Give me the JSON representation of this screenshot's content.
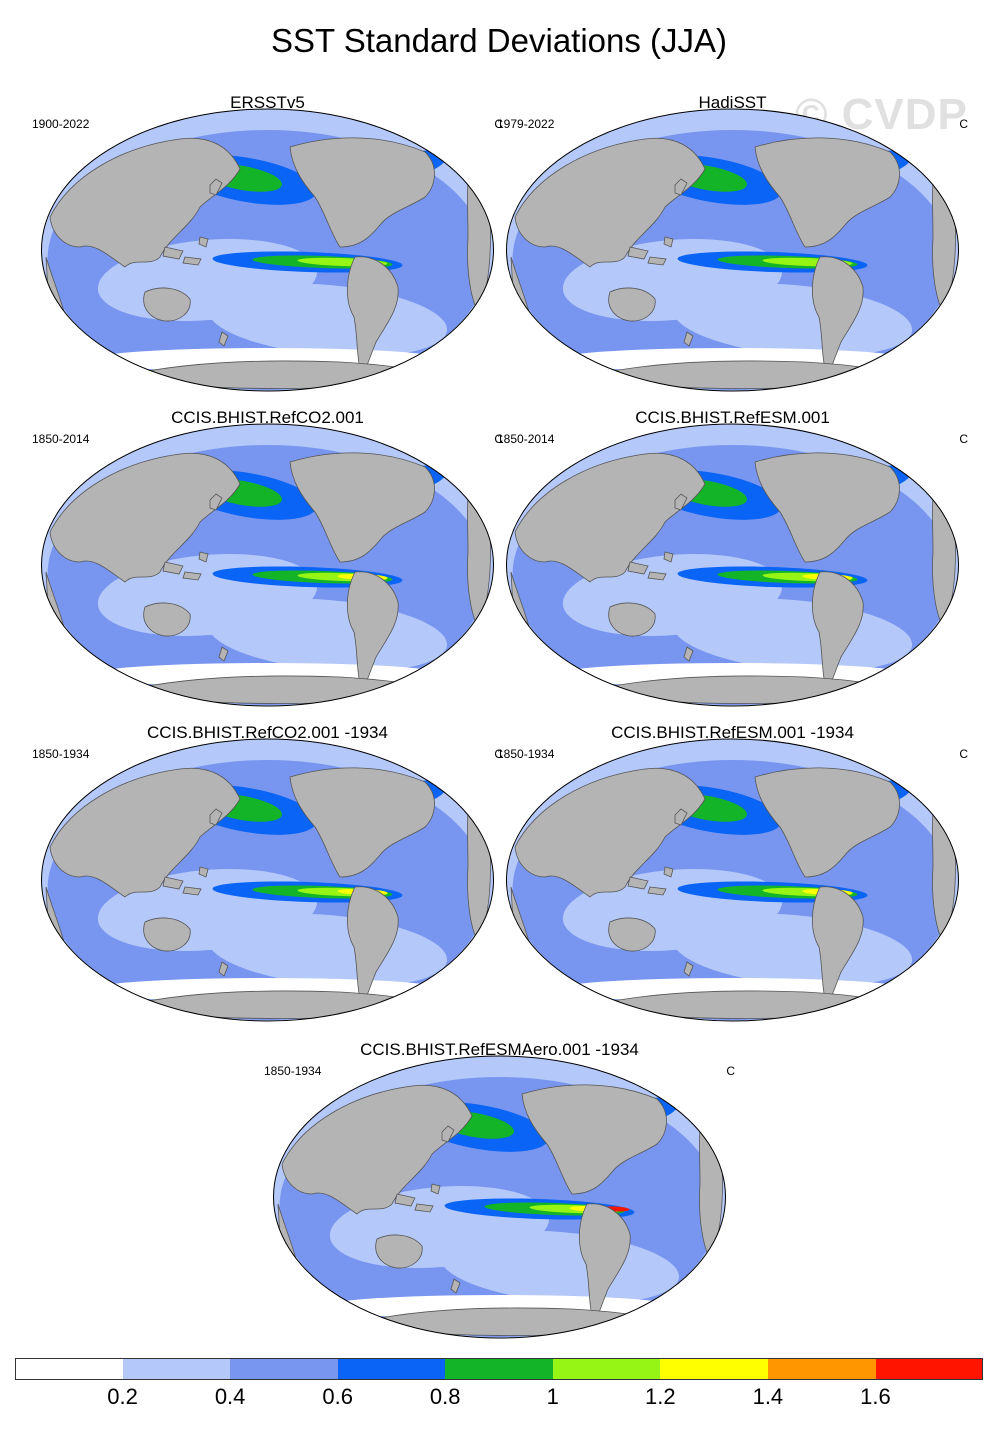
{
  "title": "SST Standard Deviations (JJA)",
  "watermark": "© CVDP",
  "panels": [
    {
      "title": "ERSSTv5",
      "period": "1900-2022",
      "unit": "C"
    },
    {
      "title": "HadiSST",
      "period": "1979-2022",
      "unit": "C"
    },
    {
      "title": "CCIS.BHIST.RefCO2.001",
      "period": "1850-2014",
      "unit": "C"
    },
    {
      "title": "CCIS.BHIST.RefESM.001",
      "period": "1850-2014",
      "unit": "C"
    },
    {
      "title": "CCIS.BHIST.RefCO2.001 -1934",
      "period": "1850-1934",
      "unit": "C"
    },
    {
      "title": "CCIS.BHIST.RefESM.001 -1934",
      "period": "1850-1934",
      "unit": "C"
    },
    {
      "title": "CCIS.BHIST.RefESMAero.001 -1934",
      "period": "1850-1934",
      "unit": "C"
    }
  ],
  "colorbar": {
    "colors": [
      "#ffffff",
      "#b4c8fa",
      "#7896f0",
      "#0a64f5",
      "#14b428",
      "#96f514",
      "#ffff00",
      "#ff9600",
      "#ff1400"
    ],
    "labels": [
      "0.2",
      "0.4",
      "0.6",
      "0.8",
      "1",
      "1.2",
      "1.4",
      "1.6"
    ]
  },
  "map_colors": {
    "ocean_base": "#b4c8fa",
    "land": "#b4b4b4",
    "coast": "#555555"
  }
}
